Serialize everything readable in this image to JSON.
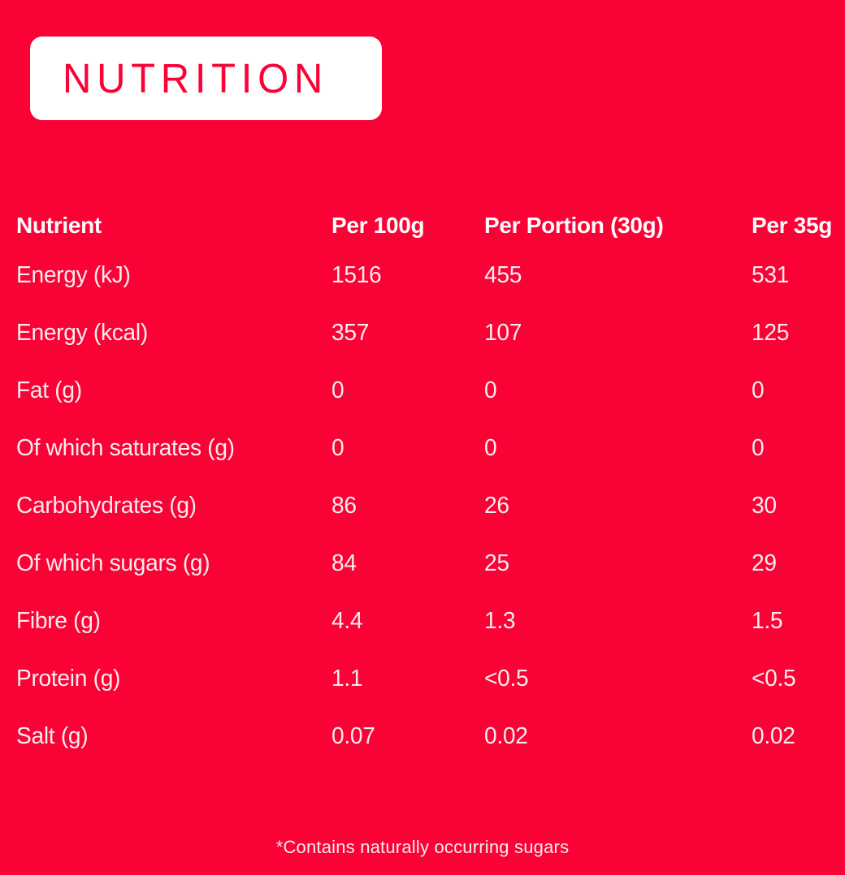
{
  "page": {
    "background_color": "#FA0235",
    "accent_color": "#FFFFFF",
    "title": "NUTRITION",
    "footnote": "*Contains naturally occurring sugars"
  },
  "chart_data": {
    "type": "table",
    "title": "NUTRITION",
    "columns": [
      "Nutrient",
      "Per 100g",
      "Per Portion (30g)",
      "Per 35g"
    ],
    "rows": [
      {
        "label": "Energy (kJ)",
        "per100g": "1516",
        "portion30g": "455",
        "per35g": "531"
      },
      {
        "label": "Energy (kcal)",
        "per100g": "357",
        "portion30g": "107",
        "per35g": "125"
      },
      {
        "label": "Fat (g)",
        "per100g": "0",
        "portion30g": "0",
        "per35g": "0"
      },
      {
        "label": "Of which saturates (g)",
        "per100g": "0",
        "portion30g": "0",
        "per35g": "0"
      },
      {
        "label": "Carbohydrates (g)",
        "per100g": "86",
        "portion30g": "26",
        "per35g": "30"
      },
      {
        "label": "Of which sugars (g)",
        "per100g": "84",
        "portion30g": "25",
        "per35g": "29"
      },
      {
        "label": "Fibre (g)",
        "per100g": "4.4",
        "portion30g": "1.3",
        "per35g": "1.5"
      },
      {
        "label": "Protein (g)",
        "per100g": "1.1",
        "portion30g": "<0.5",
        "per35g": "<0.5"
      },
      {
        "label": "Salt (g)",
        "per100g": "0.07",
        "portion30g": "0.02",
        "per35g": "0.02"
      }
    ]
  }
}
